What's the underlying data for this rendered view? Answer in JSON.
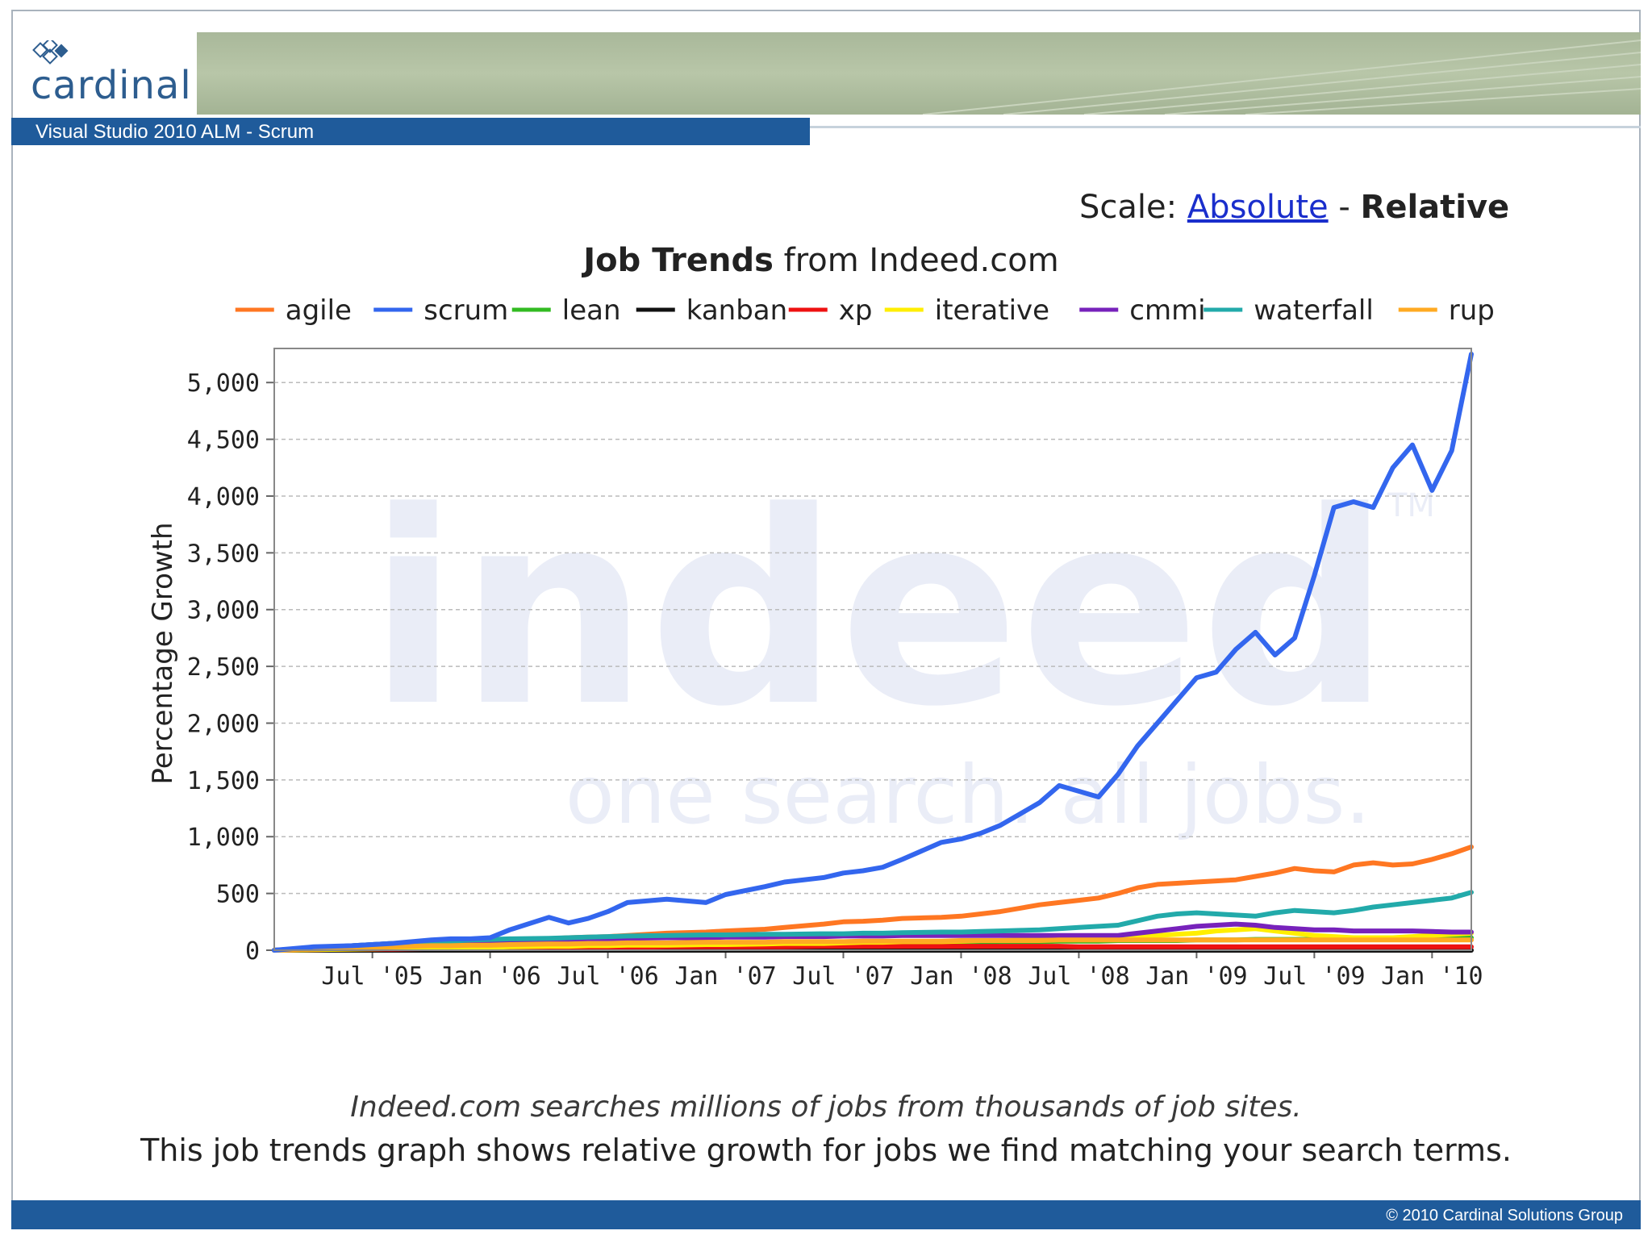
{
  "brand": {
    "logo_text": "cardinal"
  },
  "slide": {
    "title": "Visual Studio 2010 ALM - Scrum",
    "footer": "© 2010 Cardinal Solutions Group"
  },
  "scale": {
    "label": "Scale:",
    "absolute": "Absolute",
    "separator": "-",
    "relative": "Relative"
  },
  "captions": {
    "line1": "Indeed.com searches millions of jobs from thousands of job sites.",
    "line2": "This job trends graph shows relative growth for jobs we find matching your search terms."
  },
  "watermark": {
    "brand": "indeed",
    "tagline": "one search. all jobs.",
    "tm": "TM"
  },
  "colors": {
    "brand_blue": "#1f5b9b",
    "header_green": "#a9b89a"
  },
  "chart_data": {
    "type": "line",
    "title_bold": "Job Trends",
    "title_rest": " from Indeed.com",
    "ylabel": "Percentage Growth",
    "xlabel": "",
    "ylim": [
      0,
      5300
    ],
    "xlim": [
      0,
      61
    ],
    "yticks": [
      0,
      500,
      1000,
      1500,
      2000,
      2500,
      3000,
      3500,
      4000,
      4500,
      5000
    ],
    "ytick_labels": [
      "0",
      "500",
      "1,000",
      "1,500",
      "2,000",
      "2,500",
      "3,000",
      "3,500",
      "4,000",
      "4,500",
      "5,000"
    ],
    "xticks": [
      5,
      11,
      17,
      23,
      29,
      35,
      41,
      47,
      53,
      59
    ],
    "xtick_labels": [
      "Jul '05",
      "Jan '06",
      "Jul '06",
      "Jan '07",
      "Jul '07",
      "Jan '08",
      "Jul '08",
      "Jan '09",
      "Jul '09",
      "Jan '10"
    ],
    "x_months": [
      0,
      2,
      4,
      6,
      8,
      9,
      10,
      11,
      12,
      14,
      15,
      16,
      17,
      18,
      20,
      22,
      23,
      25,
      26,
      28,
      29,
      30,
      31,
      32,
      34,
      35,
      36,
      37,
      38,
      39,
      40,
      41,
      42,
      43,
      44,
      45,
      46,
      47,
      48,
      49,
      50,
      51,
      52,
      53,
      54,
      55,
      56,
      57,
      58,
      59,
      60,
      61
    ],
    "grid": true,
    "legend_position": "top",
    "series": [
      {
        "name": "agile",
        "color": "#ff7722",
        "values": [
          0,
          10,
          30,
          45,
          60,
          65,
          75,
          85,
          90,
          100,
          110,
          115,
          120,
          130,
          150,
          160,
          170,
          185,
          200,
          230,
          250,
          255,
          265,
          280,
          290,
          300,
          320,
          340,
          370,
          400,
          420,
          440,
          460,
          500,
          550,
          580,
          590,
          600,
          610,
          620,
          650,
          680,
          720,
          700,
          690,
          750,
          770,
          750,
          760,
          800,
          850,
          910
        ]
      },
      {
        "name": "scrum",
        "color": "#3366ee",
        "values": [
          0,
          30,
          40,
          60,
          90,
          100,
          100,
          110,
          180,
          290,
          240,
          280,
          340,
          420,
          450,
          420,
          490,
          560,
          600,
          640,
          680,
          700,
          730,
          800,
          950,
          980,
          1030,
          1100,
          1200,
          1300,
          1450,
          1400,
          1350,
          1550,
          1800,
          2000,
          2200,
          2400,
          2450,
          2650,
          2800,
          2600,
          2750,
          3300,
          3900,
          3950,
          3900,
          4250,
          4450,
          4050,
          4400,
          5250
        ]
      },
      {
        "name": "lean",
        "color": "#33bb22",
        "values": [
          0,
          5,
          10,
          15,
          20,
          20,
          25,
          25,
          30,
          35,
          35,
          40,
          40,
          45,
          45,
          50,
          50,
          55,
          55,
          60,
          60,
          60,
          65,
          65,
          70,
          70,
          70,
          75,
          75,
          75,
          80,
          80,
          80,
          85,
          85,
          85,
          85,
          90,
          90,
          90,
          95,
          95,
          95,
          95,
          100,
          100,
          100,
          100,
          105,
          105,
          105,
          110
        ]
      },
      {
        "name": "kanban",
        "color": "#111111",
        "values": [
          0,
          0,
          0,
          0,
          0,
          0,
          0,
          0,
          0,
          0,
          0,
          0,
          0,
          0,
          0,
          0,
          0,
          0,
          0,
          0,
          0,
          0,
          0,
          0,
          0,
          0,
          0,
          0,
          0,
          0,
          0,
          0,
          0,
          0,
          0,
          0,
          0,
          0,
          0,
          0,
          0,
          0,
          0,
          0,
          0,
          0,
          0,
          0,
          0,
          0,
          0,
          0
        ]
      },
      {
        "name": "xp",
        "color": "#ee1111",
        "values": [
          0,
          5,
          10,
          10,
          15,
          15,
          15,
          20,
          20,
          20,
          25,
          25,
          25,
          25,
          30,
          30,
          30,
          30,
          30,
          35,
          35,
          35,
          35,
          35,
          35,
          35,
          35,
          35,
          35,
          35,
          35,
          30,
          30,
          30,
          30,
          30,
          30,
          30,
          30,
          30,
          30,
          30,
          30,
          30,
          30,
          30,
          30,
          30,
          30,
          30,
          30,
          30
        ]
      },
      {
        "name": "iterative",
        "color": "#ffee00",
        "values": [
          0,
          5,
          10,
          15,
          20,
          20,
          25,
          25,
          30,
          35,
          35,
          40,
          40,
          45,
          45,
          50,
          50,
          55,
          60,
          60,
          65,
          70,
          70,
          75,
          75,
          80,
          85,
          85,
          90,
          95,
          95,
          100,
          105,
          110,
          120,
          130,
          140,
          150,
          170,
          180,
          190,
          170,
          150,
          130,
          120,
          110,
          110,
          110,
          120,
          130,
          140,
          150
        ]
      },
      {
        "name": "cmmi",
        "color": "#7722bb",
        "values": [
          0,
          20,
          40,
          60,
          70,
          70,
          80,
          80,
          85,
          90,
          95,
          100,
          100,
          105,
          110,
          110,
          115,
          115,
          120,
          120,
          125,
          125,
          125,
          130,
          130,
          130,
          130,
          130,
          130,
          130,
          130,
          130,
          130,
          130,
          150,
          170,
          190,
          210,
          220,
          230,
          220,
          200,
          190,
          180,
          180,
          170,
          170,
          170,
          170,
          165,
          160,
          160
        ]
      },
      {
        "name": "waterfall",
        "color": "#22aaaa",
        "values": [
          0,
          20,
          40,
          60,
          70,
          80,
          90,
          95,
          100,
          105,
          110,
          115,
          120,
          125,
          130,
          135,
          135,
          140,
          140,
          145,
          145,
          150,
          150,
          155,
          160,
          160,
          165,
          170,
          175,
          180,
          190,
          200,
          210,
          220,
          260,
          300,
          320,
          330,
          320,
          310,
          300,
          330,
          350,
          340,
          330,
          350,
          380,
          400,
          420,
          440,
          460,
          510
        ]
      },
      {
        "name": "rup",
        "color": "#ffaa22",
        "values": [
          0,
          10,
          20,
          30,
          40,
          40,
          45,
          45,
          50,
          55,
          55,
          60,
          60,
          65,
          65,
          70,
          70,
          70,
          75,
          75,
          75,
          80,
          80,
          80,
          80,
          85,
          85,
          85,
          85,
          85,
          90,
          90,
          90,
          90,
          90,
          90,
          90,
          90,
          90,
          90,
          90,
          90,
          90,
          90,
          90,
          90,
          90,
          90,
          90,
          90,
          90,
          90
        ]
      }
    ]
  }
}
